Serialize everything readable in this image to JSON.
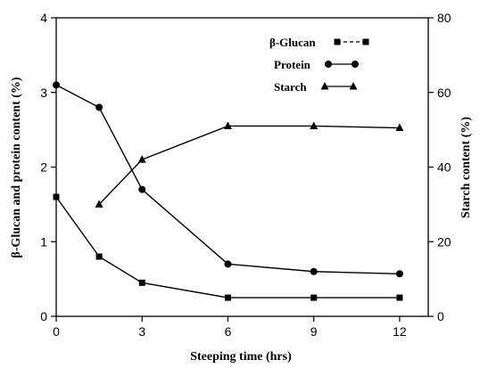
{
  "chart_data": {
    "type": "line",
    "xlabel": "Steeping time (hrs)",
    "ylabel_left": "β-Glucan and protein content (%)",
    "ylabel_right": "Starch content (%)",
    "x_ticks": [
      0,
      3,
      6,
      9,
      12
    ],
    "x_range": [
      0,
      13
    ],
    "y_left_range": [
      0,
      4
    ],
    "y_left_ticks": [
      0,
      1,
      2,
      3,
      4
    ],
    "y_right_range": [
      0,
      80
    ],
    "y_right_ticks": [
      0,
      20,
      40,
      60,
      80
    ],
    "legend_position": "top-right",
    "series": [
      {
        "name": "β-Glucan",
        "axis": "left",
        "marker": "square",
        "x": [
          0,
          1.5,
          3,
          6,
          9,
          12
        ],
        "values": [
          1.6,
          0.8,
          0.45,
          0.25,
          0.25,
          0.25
        ]
      },
      {
        "name": "Protein",
        "axis": "left",
        "marker": "circle",
        "x": [
          0,
          1.5,
          3,
          6,
          9,
          12
        ],
        "values": [
          3.1,
          2.8,
          1.7,
          0.7,
          0.6,
          0.57
        ]
      },
      {
        "name": "Starch",
        "axis": "right",
        "marker": "triangle",
        "x": [
          1.5,
          3,
          6,
          9,
          12
        ],
        "values": [
          30,
          42,
          51,
          51,
          50.5
        ]
      }
    ]
  }
}
